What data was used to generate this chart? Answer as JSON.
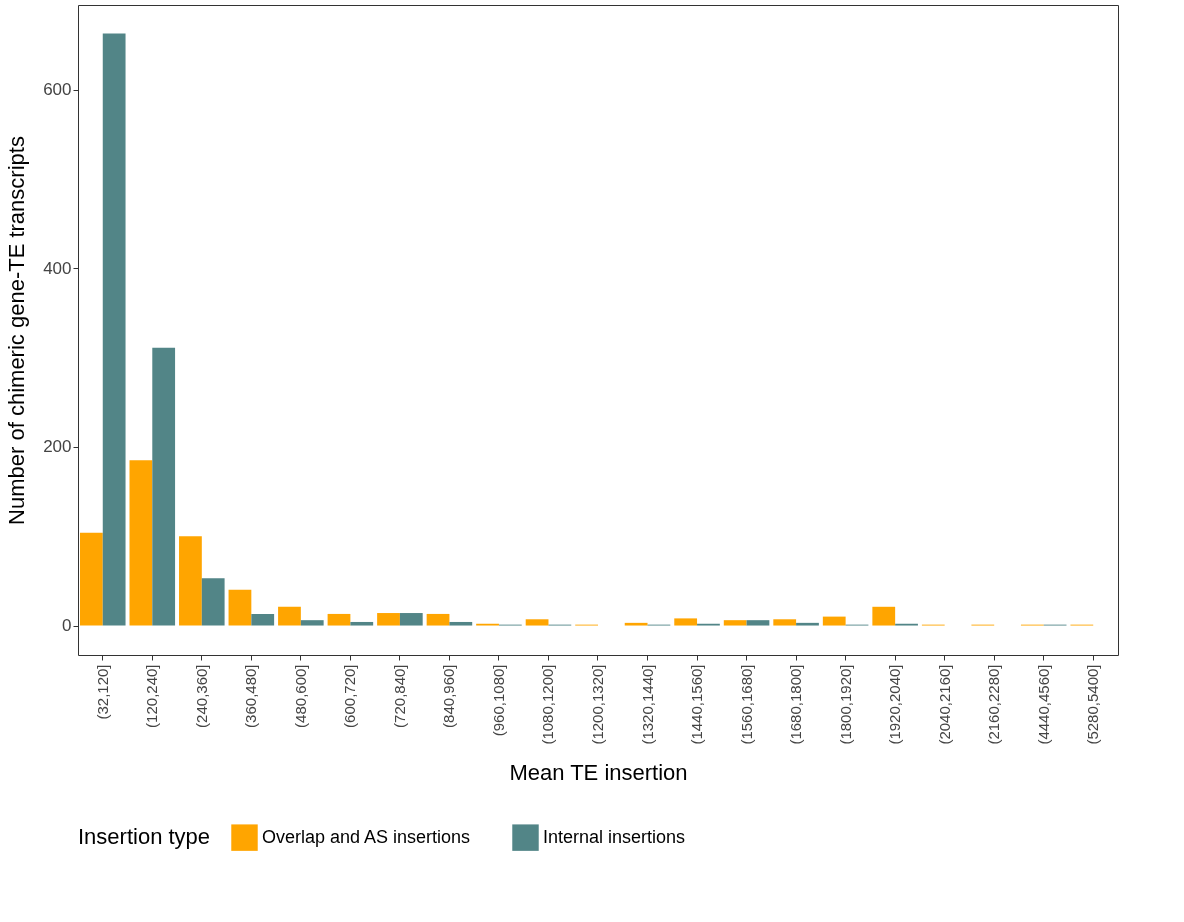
{
  "chart_data": {
    "type": "bar",
    "xlabel": "Mean TE insertion",
    "ylabel": "Number of chimeric gene-TE transcripts",
    "legend_title": "Insertion type",
    "categories": [
      "(32,120]",
      "(120,240]",
      "(240,360]",
      "(360,480]",
      "(480,600]",
      "(600,720]",
      "(720,840]",
      "(840,960]",
      "(960,1080]",
      "(1080,1200]",
      "(1200,1320]",
      "(1320,1440]",
      "(1440,1560]",
      "(1560,1680]",
      "(1680,1800]",
      "(1800,1920]",
      "(1920,2040]",
      "(2040,2160]",
      "(2160,2280]",
      "(4440,4560]",
      "(5280,5400]"
    ],
    "series": [
      {
        "name": "Overlap and AS insertions",
        "color": "#ffa500",
        "values": [
          104,
          185,
          100,
          40,
          21,
          13,
          14,
          13,
          2,
          7,
          1,
          3,
          8,
          6,
          7,
          10,
          21,
          1,
          1,
          1,
          1
        ]
      },
      {
        "name": "Internal insertions",
        "color": "#528587",
        "values": [
          663,
          311,
          53,
          13,
          6,
          4,
          14,
          4,
          1,
          1,
          0,
          1,
          2,
          6,
          3,
          1,
          2,
          0,
          0,
          1,
          0
        ]
      }
    ],
    "ylim": [
      -33,
      695
    ],
    "yticks": [
      0,
      200,
      400,
      600
    ],
    "grid": false,
    "legend": "bottom"
  }
}
